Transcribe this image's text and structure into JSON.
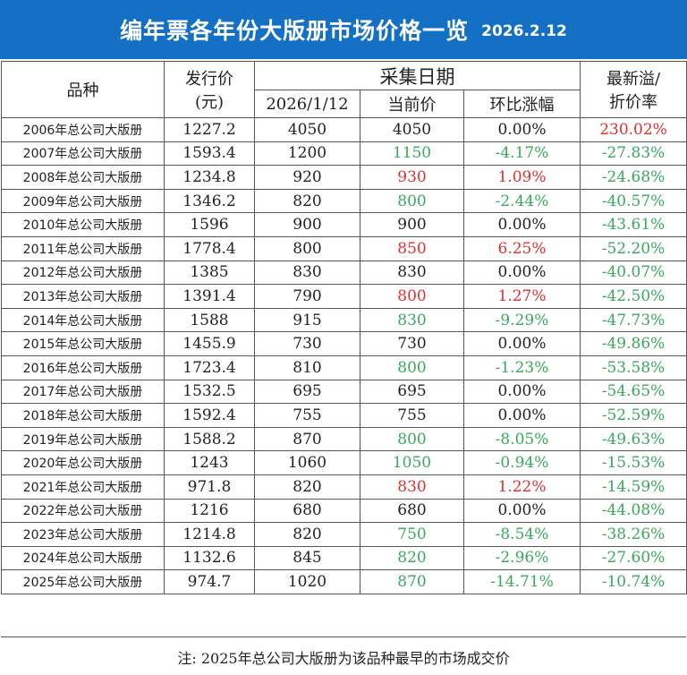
{
  "header": {
    "title": "编年票各年份大版册市场价格一览",
    "date": "2026.2.12"
  },
  "columns": {
    "variety": "品种",
    "issue_price_line1": "发行价",
    "issue_price_line2": "(元)",
    "collect_date": "采集日期",
    "prev_date": "2026/1/12",
    "current_price": "当前价",
    "change": "环比涨幅",
    "premium_line1": "最新溢/",
    "premium_line2": "折价率"
  },
  "rows": [
    {
      "name": "2006年总公司大版册",
      "issue": "1227.2",
      "prev": "4050",
      "cur": "4050",
      "change": "0.00%",
      "premium": "230.02%",
      "trend": "flat",
      "premium_trend": "up"
    },
    {
      "name": "2007年总公司大版册",
      "issue": "1593.4",
      "prev": "1200",
      "cur": "1150",
      "change": "-4.17%",
      "premium": "-27.83%",
      "trend": "down",
      "premium_trend": "down"
    },
    {
      "name": "2008年总公司大版册",
      "issue": "1234.8",
      "prev": "920",
      "cur": "930",
      "change": "1.09%",
      "premium": "-24.68%",
      "trend": "up",
      "premium_trend": "down"
    },
    {
      "name": "2009年总公司大版册",
      "issue": "1346.2",
      "prev": "820",
      "cur": "800",
      "change": "-2.44%",
      "premium": "-40.57%",
      "trend": "down",
      "premium_trend": "down"
    },
    {
      "name": "2010年总公司大版册",
      "issue": "1596",
      "prev": "900",
      "cur": "900",
      "change": "0.00%",
      "premium": "-43.61%",
      "trend": "flat",
      "premium_trend": "down"
    },
    {
      "name": "2011年总公司大版册",
      "issue": "1778.4",
      "prev": "800",
      "cur": "850",
      "change": "6.25%",
      "premium": "-52.20%",
      "trend": "up",
      "premium_trend": "down"
    },
    {
      "name": "2012年总公司大版册",
      "issue": "1385",
      "prev": "830",
      "cur": "830",
      "change": "0.00%",
      "premium": "-40.07%",
      "trend": "flat",
      "premium_trend": "down"
    },
    {
      "name": "2013年总公司大版册",
      "issue": "1391.4",
      "prev": "790",
      "cur": "800",
      "change": "1.27%",
      "premium": "-42.50%",
      "trend": "up",
      "premium_trend": "down"
    },
    {
      "name": "2014年总公司大版册",
      "issue": "1588",
      "prev": "915",
      "cur": "830",
      "change": "-9.29%",
      "premium": "-47.73%",
      "trend": "down",
      "premium_trend": "down"
    },
    {
      "name": "2015年总公司大版册",
      "issue": "1455.9",
      "prev": "730",
      "cur": "730",
      "change": "0.00%",
      "premium": "-49.86%",
      "trend": "flat",
      "premium_trend": "down"
    },
    {
      "name": "2016年总公司大版册",
      "issue": "1723.4",
      "prev": "810",
      "cur": "800",
      "change": "-1.23%",
      "premium": "-53.58%",
      "trend": "down",
      "premium_trend": "down"
    },
    {
      "name": "2017年总公司大版册",
      "issue": "1532.5",
      "prev": "695",
      "cur": "695",
      "change": "0.00%",
      "premium": "-54.65%",
      "trend": "flat",
      "premium_trend": "down"
    },
    {
      "name": "2018年总公司大版册",
      "issue": "1592.4",
      "prev": "755",
      "cur": "755",
      "change": "0.00%",
      "premium": "-52.59%",
      "trend": "flat",
      "premium_trend": "down"
    },
    {
      "name": "2019年总公司大版册",
      "issue": "1588.2",
      "prev": "870",
      "cur": "800",
      "change": "-8.05%",
      "premium": "-49.63%",
      "trend": "down",
      "premium_trend": "down"
    },
    {
      "name": "2020年总公司大版册",
      "issue": "1243",
      "prev": "1060",
      "cur": "1050",
      "change": "-0.94%",
      "premium": "-15.53%",
      "trend": "down",
      "premium_trend": "down"
    },
    {
      "name": "2021年总公司大版册",
      "issue": "971.8",
      "prev": "820",
      "cur": "830",
      "change": "1.22%",
      "premium": "-14.59%",
      "trend": "up",
      "premium_trend": "down"
    },
    {
      "name": "2022年总公司大版册",
      "issue": "1216",
      "prev": "680",
      "cur": "680",
      "change": "0.00%",
      "premium": "-44.08%",
      "trend": "flat",
      "premium_trend": "down"
    },
    {
      "name": "2023年总公司大版册",
      "issue": "1214.8",
      "prev": "820",
      "cur": "750",
      "change": "-8.54%",
      "premium": "-38.26%",
      "trend": "down",
      "premium_trend": "down"
    },
    {
      "name": "2024年总公司大版册",
      "issue": "1132.6",
      "prev": "845",
      "cur": "820",
      "change": "-2.96%",
      "premium": "-27.60%",
      "trend": "down",
      "premium_trend": "down"
    },
    {
      "name": "2025年总公司大版册",
      "issue": "974.7",
      "prev": "1020",
      "cur": "870",
      "change": "-14.71%",
      "premium": "-10.74%",
      "trend": "down",
      "premium_trend": "down"
    }
  ],
  "colors": {
    "header_bg": "#1470c4",
    "up": "#e03030",
    "down": "#3aa85c",
    "flat": "#222222"
  },
  "footer": {
    "note": "注: 2025年总公司大版册为该品种最早的市场成交价"
  }
}
